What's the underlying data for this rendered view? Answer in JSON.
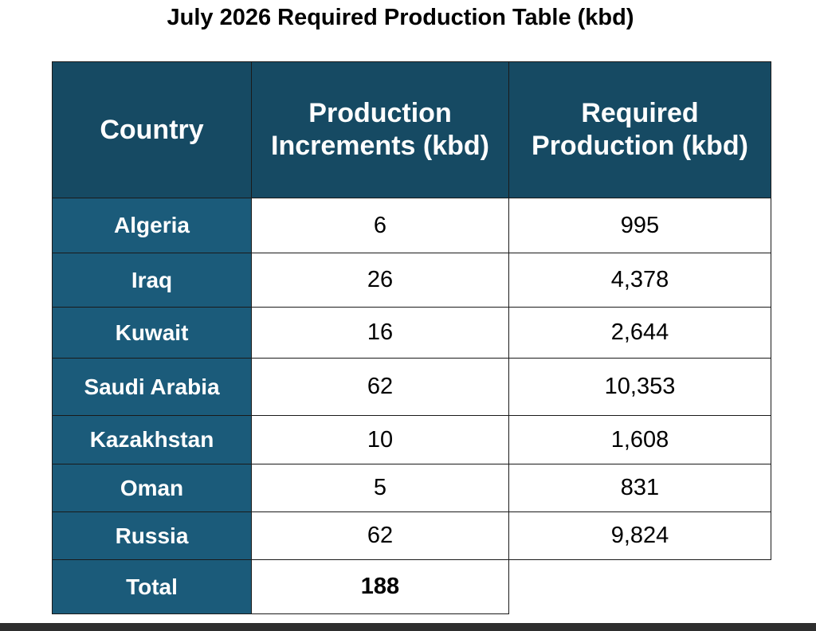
{
  "title": "July 2026 Required Production Table (kbd)",
  "table": {
    "header": [
      "Country",
      "Production Increments (kbd)",
      "Required Production (kbd)"
    ],
    "rows": [
      [
        "Algeria",
        "6",
        "995"
      ],
      [
        "Iraq",
        "26",
        "4,378"
      ],
      [
        "Kuwait",
        "16",
        "2,644"
      ],
      [
        "Saudi Arabia",
        "62",
        "10,353"
      ],
      [
        "Kazakhstan",
        "10",
        "1,608"
      ],
      [
        "Oman",
        "5",
        "831"
      ],
      [
        "Russia",
        "62",
        "9,824"
      ]
    ],
    "total": [
      "Total",
      "188"
    ]
  }
}
